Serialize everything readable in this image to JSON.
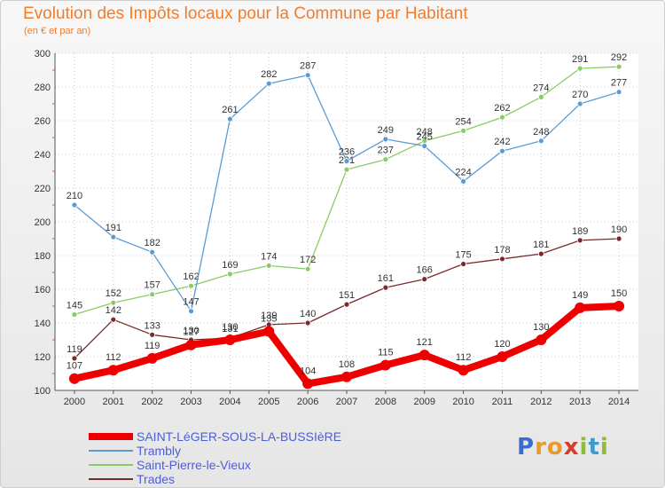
{
  "header": {
    "title": "Evolution des Impôts locaux pour la Commune par Habitant",
    "subtitle": "(en € et par an)"
  },
  "brand": {
    "letters": [
      "P",
      "r",
      "o",
      "x",
      "i",
      "t",
      "i"
    ],
    "colors": [
      "#3c6bd0",
      "#e89a2b",
      "#e89a2b",
      "#d83a2b",
      "#8bbd38",
      "#3c9ad0",
      "#8bbd38"
    ]
  },
  "chart_data": {
    "type": "line",
    "title": "Evolution des Impôts locaux pour la Commune par Habitant",
    "subtitle": "(en € et par an)",
    "x": [
      2000,
      2001,
      2002,
      2003,
      2004,
      2005,
      2006,
      2007,
      2008,
      2009,
      2010,
      2011,
      2012,
      2013,
      2014
    ],
    "ylim": [
      100,
      300
    ],
    "yticks": [
      100,
      120,
      140,
      160,
      180,
      200,
      220,
      240,
      260,
      280,
      300
    ],
    "grid": true,
    "legend_position": "bottom-left",
    "series": [
      {
        "name": "Trades",
        "color": "#7a2a2a",
        "values": [
          119,
          142,
          133,
          130,
          131,
          139,
          140,
          151,
          161,
          166,
          175,
          178,
          181,
          189,
          190
        ]
      },
      {
        "name": "Saint-Pierre-le-Vieux",
        "color": "#88cc66",
        "values": [
          145,
          152,
          157,
          162,
          169,
          174,
          172,
          231,
          237,
          248,
          254,
          262,
          274,
          291,
          292
        ]
      },
      {
        "name": "Trambly",
        "color": "#5b9bd5",
        "values": [
          210,
          191,
          182,
          147,
          261,
          282,
          287,
          236,
          249,
          245,
          224,
          242,
          248,
          270,
          277
        ]
      },
      {
        "name": "SAINT-LéGER-SOUS-LA-BUSSIèRE",
        "color": "#ee0000",
        "values": [
          107,
          112,
          119,
          127,
          130,
          135,
          104,
          108,
          115,
          121,
          112,
          120,
          130,
          149,
          150
        ]
      }
    ]
  }
}
